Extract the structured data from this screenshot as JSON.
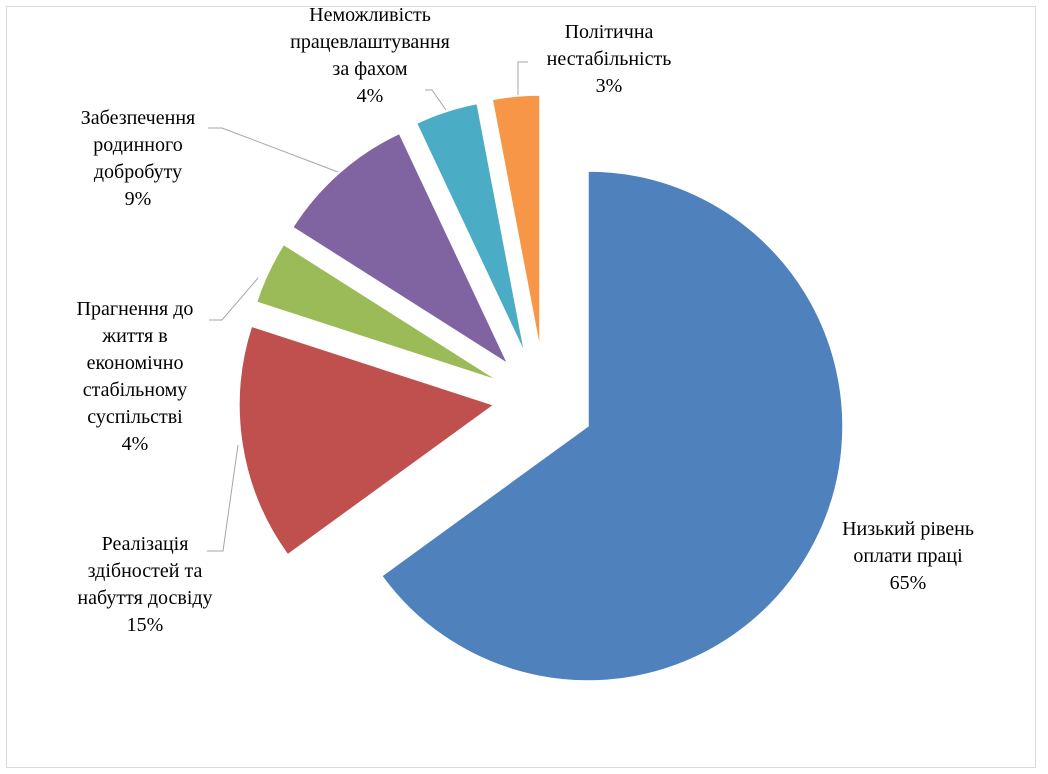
{
  "chart_data": {
    "type": "pie",
    "exploded": true,
    "title": "",
    "slices": [
      {
        "label_lines": [
          "Низький рівень",
          "оплати праці"
        ],
        "percent_label": "65%",
        "value": 65,
        "color": "#4f81bd"
      },
      {
        "label_lines": [
          "Реалізація",
          "здібностей та",
          "набуття досвіду"
        ],
        "percent_label": "15%",
        "value": 15,
        "color": "#c0504d"
      },
      {
        "label_lines": [
          "Прагнення до",
          "життя в",
          "економічно",
          "стабільному",
          "суспільстві"
        ],
        "percent_label": "4%",
        "value": 4,
        "color": "#9bbb59"
      },
      {
        "label_lines": [
          "Забезпечення",
          "родинного",
          "добробуту"
        ],
        "percent_label": "9%",
        "value": 9,
        "color": "#8064a2"
      },
      {
        "label_lines": [
          "Неможливість",
          "працевлаштування",
          "за фахом"
        ],
        "percent_label": "4%",
        "value": 4,
        "color": "#4bacc6"
      },
      {
        "label_lines": [
          "Політична",
          "нестабільність"
        ],
        "percent_label": "3%",
        "value": 3,
        "color": "#f79646"
      }
    ]
  }
}
